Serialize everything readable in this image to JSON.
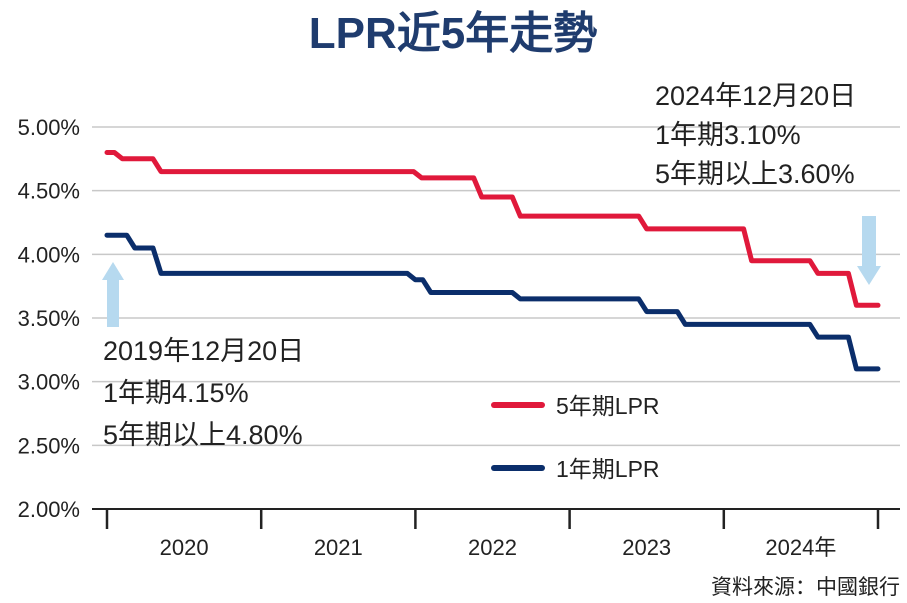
{
  "colors": {
    "five_year": "#e0193b",
    "one_year": "#0b2e6b",
    "title": "#1f3c6e",
    "grid": "#c8c8c8",
    "arrow": "#b6d9ef",
    "axis": "#222222"
  },
  "chart_data": {
    "type": "line",
    "title": "LPR近5年走勢",
    "ylim": [
      2.0,
      5.0
    ],
    "grid": true,
    "legend_position": "center-right",
    "y_ticks": [
      "5.00%",
      "4.50%",
      "4.00%",
      "3.50%",
      "3.00%",
      "2.50%",
      "2.00%"
    ],
    "y_tick_values": [
      5.0,
      4.5,
      4.0,
      3.5,
      3.0,
      2.5,
      2.0
    ],
    "x_ticks": [
      "2020",
      "2021",
      "2022",
      "2023",
      "2024年"
    ],
    "x_range": [
      2019.95,
      2024.95
    ],
    "series": [
      {
        "name": "5年期LPR",
        "color_key": "five_year",
        "points": [
          {
            "x": 2019.95,
            "y": 4.8
          },
          {
            "x": 2020.05,
            "y": 4.75
          },
          {
            "x": 2020.3,
            "y": 4.65
          },
          {
            "x": 2021.99,
            "y": 4.6
          },
          {
            "x": 2022.38,
            "y": 4.45
          },
          {
            "x": 2022.63,
            "y": 4.3
          },
          {
            "x": 2023.45,
            "y": 4.2
          },
          {
            "x": 2024.13,
            "y": 3.95
          },
          {
            "x": 2024.56,
            "y": 3.85
          },
          {
            "x": 2024.81,
            "y": 3.6
          },
          {
            "x": 2024.95,
            "y": 3.6
          }
        ]
      },
      {
        "name": "1年期LPR",
        "color_key": "one_year",
        "points": [
          {
            "x": 2019.95,
            "y": 4.15
          },
          {
            "x": 2020.13,
            "y": 4.05
          },
          {
            "x": 2020.3,
            "y": 3.85
          },
          {
            "x": 2021.95,
            "y": 3.8
          },
          {
            "x": 2022.05,
            "y": 3.7
          },
          {
            "x": 2022.63,
            "y": 3.65
          },
          {
            "x": 2023.45,
            "y": 3.55
          },
          {
            "x": 2023.7,
            "y": 3.45
          },
          {
            "x": 2024.56,
            "y": 3.35
          },
          {
            "x": 2024.81,
            "y": 3.1
          },
          {
            "x": 2024.95,
            "y": 3.1
          }
        ]
      }
    ],
    "annotations": {
      "start": {
        "date": "2019年12月20日",
        "one_year": "1年期4.15%",
        "five_year": "5年期以上4.80%"
      },
      "end": {
        "date": "2024年12月20日",
        "one_year": "1年期3.10%",
        "five_year": "5年期以上3.60%"
      }
    },
    "source": "資料來源：中國銀行"
  }
}
